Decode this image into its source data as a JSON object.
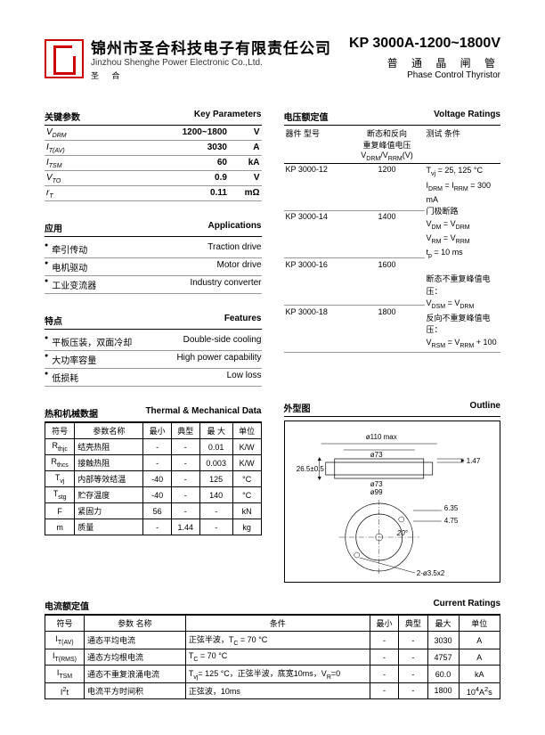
{
  "header": {
    "company_cn": "锦州市圣合科技电子有限责任公司",
    "company_en": "Jinzhou Shenghe Power Electronic Co.,Ltd.",
    "sub": "圣 合",
    "part": "KP 3000A-1200~1800V",
    "part_cn": "普 通 晶 闸 管",
    "part_en": "Phase Control Thyristor"
  },
  "key_params": {
    "title_cn": "关键参数",
    "title_en": "Key Parameters",
    "rows": [
      {
        "p": "V<sub>DRM</sub>",
        "v": "1200~1800",
        "u": "V"
      },
      {
        "p": "I<sub>T(AV)</sub>",
        "v": "3030",
        "u": "A"
      },
      {
        "p": "I<sub>TSM</sub>",
        "v": "60",
        "u": "kA"
      },
      {
        "p": "V<sub>TO</sub>",
        "v": "0.9",
        "u": "V"
      },
      {
        "p": "r<sub>T</sub>",
        "v": "0.11",
        "u": "mΩ"
      }
    ]
  },
  "apps": {
    "title_cn": "应用",
    "title_en": "Applications",
    "rows": [
      {
        "cn": "牵引传动",
        "en": "Traction drive"
      },
      {
        "cn": "电机驱动",
        "en": "Motor drive"
      },
      {
        "cn": "工业变流器",
        "en": "Industry converter"
      }
    ]
  },
  "features": {
    "title_cn": "特点",
    "title_en": "Features",
    "rows": [
      {
        "cn": "平板压装，双面冷却",
        "en": "Double-side cooling"
      },
      {
        "cn": "大功率容量",
        "en": "High power capability"
      },
      {
        "cn": "低损耗",
        "en": "Low loss"
      }
    ]
  },
  "thermal": {
    "title_cn": "热和机械数据",
    "title_en": "Thermal & Mechanical Data",
    "head": [
      "符号",
      "参数名称",
      "最小",
      "典型",
      "最 大",
      "单位"
    ],
    "rows": [
      [
        "R<sub>thjc</sub>",
        "结壳热阻",
        "-",
        "-",
        "0.01",
        "K/W"
      ],
      [
        "R<sub>thcs</sub>",
        "接触热阻",
        "-",
        "-",
        "0.003",
        "K/W"
      ],
      [
        "T<sub>vj</sub>",
        "内部等效结温",
        "-40",
        "-",
        "125",
        "°C"
      ],
      [
        "T<sub>stg</sub>",
        "贮存温度",
        "-40",
        "-",
        "140",
        "°C"
      ],
      [
        "F",
        "紧固力",
        "56",
        "-",
        "-",
        "kN"
      ],
      [
        "m",
        "质量",
        "-",
        "1.44",
        "-",
        "kg"
      ]
    ]
  },
  "voltage": {
    "title_cn": "电压额定值",
    "title_en": "Voltage Ratings",
    "head_cn": "器件  型号",
    "head_mid": "断态和反向\n重复峰值电压\nV<sub>DRM</sub>/V<sub>RRM</sub>(V)",
    "head_r": "测试    条件",
    "rows": [
      [
        "KP  3000-12",
        "1200"
      ],
      [
        "KP  3000-14",
        "1400"
      ],
      [
        "KP  3000-16",
        "1600"
      ],
      [
        "KP  3000-18",
        "1800"
      ]
    ],
    "conditions": [
      "T<sub>vj</sub> = 25, 125 °C",
      "I<sub>DRM</sub> = I<sub>RRM</sub> = 300 mA",
      "门极断路",
      "V<sub>DM</sub> = V<sub>DRM</sub>",
      "V<sub>RM</sub> = V<sub>RRM</sub>",
      "t<sub>p</sub> = 10 ms",
      "",
      "断态不重复峰值电压：",
      "V<sub>DSM</sub> = V<sub>DRM</sub>",
      "反向不重复峰值电压：",
      "V<sub>RSM</sub> = V<sub>RRM</sub> + 100"
    ]
  },
  "outline": {
    "title_cn": "外型图",
    "title_en": "Outline"
  },
  "current": {
    "title_cn": "电流额定值",
    "title_en": "Current Ratings",
    "head": [
      "符号",
      "参数  名称",
      "条件",
      "最小",
      "典型",
      "最大",
      "单位"
    ],
    "rows": [
      [
        "I<sub>T(AV)</sub>",
        "通态平均电流",
        "正弦半波，T<sub>C</sub> = 70 °C",
        "-",
        "-",
        "3030",
        "A"
      ],
      [
        "I<sub>T(RMS)</sub>",
        "通态方均根电流",
        "T<sub>C</sub> = 70 °C",
        "-",
        "-",
        "4757",
        "A"
      ],
      [
        "I<sub>TSM</sub>",
        "通态不重复浪涌电流",
        "T<sub>vj</sub>= 125 °C，正弦半波，底宽10ms，V<sub>R</sub>=0",
        "-",
        "-",
        "60.0",
        "kA"
      ],
      [
        "I<sup>2</sup>t",
        "电流平方时间积",
        "正弦波，10ms",
        "-",
        "-",
        "1800",
        "10<sup>4</sup>A<sup>2</sup>s"
      ]
    ]
  }
}
